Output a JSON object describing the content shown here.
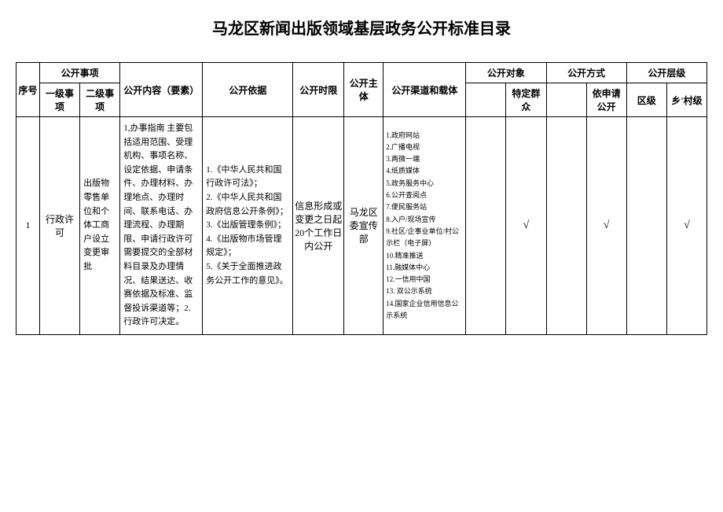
{
  "title": "马龙区新闻出版领域基层政务公开标准目录",
  "headers": {
    "seq": "序号",
    "matter": "公开事项",
    "lvl1": "一级事项",
    "lvl2": "二级事项",
    "content": "公开内容（要素）",
    "basis": "公开依据",
    "time": "公开时限",
    "subject": "公开主体",
    "channel": "公开渠道和载体",
    "target": "公开对象",
    "target_specific": "特定群众",
    "method": "公开方式",
    "method_apply": "依申请公开",
    "level": "公开层级",
    "level_district": "区级",
    "level_village": "乡'村级"
  },
  "rows": [
    {
      "seq": "1",
      "lvl1": "行政许可",
      "lvl2": "出版物零售单位和个体工商户设立变更审批",
      "content": "1,办事指南 主要包括适用范围、受理机构、事项名称、设定依据、申请条件、办理材料、办理地点、办理时间、联系电话、办理流程、办理期限、申请行政许可需要提交的全部材料目录及办理情况、结果送达、收赛依据及标准、监督投诉渠道等；2. 行政许可决定。",
      "basis": "1.《中华人民共和国行政许可法》；\n2.《中华人民共和国政府信息公开条例》；\n3.《出版管理条例》；\n4.《出版物市场管理规定》；\n5.《关于全面推进政务公开工作的意见》。",
      "time": "信息形成或变更之日起20个工作日内公开",
      "subject": "马龙区委宣传部",
      "channel": "1.政府网站\n2.广播电视\n3.两微一端\n4.纸质媒体\n5.政务服务中心\n6.公开查阅点\n7.便民服务站\n8.入户/现场宣传\n9.社区/企事业单位/村公示栏（电子屏）\n10.精准推送\n11.融媒体中心\n12.一信用中国\n13. 双公示系统\n14.国家企业信用信息公示系统",
      "check_target1": "",
      "check_target2": "√",
      "check_method1": "",
      "check_method2": "√",
      "check_level1": "",
      "check_level2": "√"
    }
  ]
}
